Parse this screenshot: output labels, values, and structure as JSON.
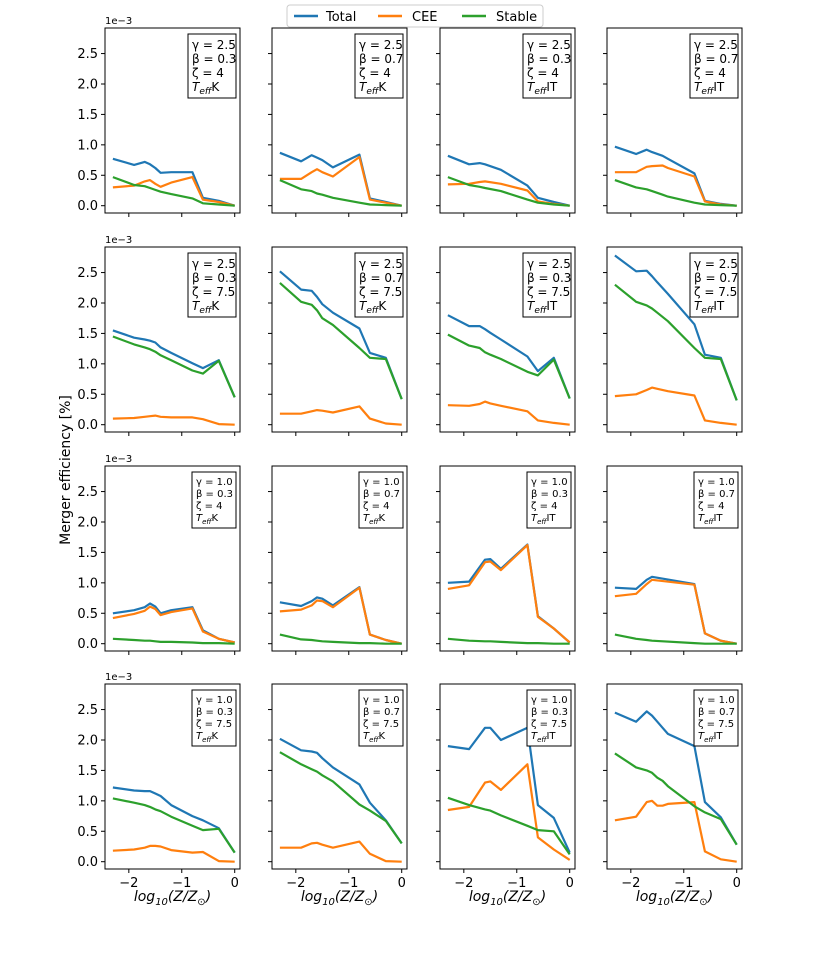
{
  "figure": {
    "ylabel": "Merger efficiency [%]",
    "xlabel": "log10(Z/Z⊙)",
    "offset_label": "1e−3",
    "legend": {
      "placement": "top-center",
      "entries": [
        {
          "name": "Total",
          "color": "#1f77b4"
        },
        {
          "name": "CEE",
          "color": "#ff7f0e"
        },
        {
          "name": "Stable",
          "color": "#2ca02c"
        }
      ]
    },
    "x_ticks": [
      -2,
      -1,
      0
    ],
    "x_tick_labels": [
      "−2",
      "−1",
      "0"
    ],
    "y_ticks": [
      0.0,
      0.5,
      1.0,
      1.5,
      2.0,
      2.5
    ],
    "y_tick_labels": [
      "0.0",
      "0.5",
      "1.0",
      "1.5",
      "2.0",
      "2.5"
    ],
    "xlim": [
      -2.45,
      0.1
    ],
    "ylim": [
      -0.12,
      2.92
    ]
  },
  "chart_data": [
    {
      "type": "line",
      "row": 0,
      "col": 0,
      "annotation": [
        "γ = 2.5",
        "β = 0.3",
        "ζ = 4",
        "TeffK"
      ],
      "x": [
        -2.3,
        -1.9,
        -1.7,
        -1.6,
        -1.5,
        -1.4,
        -1.2,
        -0.8,
        -0.6,
        -0.3,
        0
      ],
      "series": [
        {
          "name": "Total",
          "values": [
            0.77,
            0.67,
            0.72,
            0.68,
            0.62,
            0.54,
            0.55,
            0.55,
            0.13,
            0.08,
            0.0
          ]
        },
        {
          "name": "CEE",
          "values": [
            0.3,
            0.33,
            0.4,
            0.42,
            0.36,
            0.31,
            0.38,
            0.47,
            0.1,
            0.06,
            0.0
          ]
        },
        {
          "name": "Stable",
          "values": [
            0.47,
            0.34,
            0.32,
            0.29,
            0.26,
            0.23,
            0.19,
            0.12,
            0.04,
            0.02,
            0.0
          ]
        }
      ]
    },
    {
      "type": "line",
      "row": 0,
      "col": 1,
      "annotation": [
        "γ = 2.5",
        "β = 0.7",
        "ζ = 4",
        "TeffK"
      ],
      "x": [
        -2.3,
        -1.9,
        -1.7,
        -1.6,
        -1.5,
        -1.3,
        -0.8,
        -0.6,
        -0.3,
        0
      ],
      "series": [
        {
          "name": "Total",
          "values": [
            0.87,
            0.73,
            0.83,
            0.79,
            0.75,
            0.63,
            0.84,
            0.12,
            0.06,
            0.0
          ]
        },
        {
          "name": "CEE",
          "values": [
            0.44,
            0.44,
            0.55,
            0.6,
            0.55,
            0.48,
            0.8,
            0.1,
            0.05,
            0.0
          ]
        },
        {
          "name": "Stable",
          "values": [
            0.42,
            0.27,
            0.24,
            0.2,
            0.18,
            0.13,
            0.05,
            0.02,
            0.01,
            0.0
          ]
        }
      ]
    },
    {
      "type": "line",
      "row": 0,
      "col": 2,
      "annotation": [
        "γ = 2.5",
        "β = 0.3",
        "ζ = 4",
        "TeffIT"
      ],
      "x": [
        -2.3,
        -1.9,
        -1.7,
        -1.6,
        -1.3,
        -0.8,
        -0.6,
        -0.3,
        0
      ],
      "series": [
        {
          "name": "Total",
          "values": [
            0.82,
            0.68,
            0.7,
            0.68,
            0.59,
            0.33,
            0.13,
            0.06,
            0.0
          ]
        },
        {
          "name": "CEE",
          "values": [
            0.35,
            0.36,
            0.39,
            0.4,
            0.36,
            0.25,
            0.07,
            0.03,
            0.0
          ]
        },
        {
          "name": "Stable",
          "values": [
            0.47,
            0.34,
            0.31,
            0.29,
            0.24,
            0.1,
            0.05,
            0.02,
            0.0
          ]
        }
      ]
    },
    {
      "type": "line",
      "row": 0,
      "col": 3,
      "annotation": [
        "γ = 2.5",
        "β = 0.7",
        "ζ = 4",
        "TeffIT"
      ],
      "x": [
        -2.3,
        -1.9,
        -1.7,
        -1.6,
        -1.4,
        -1.3,
        -0.8,
        -0.6,
        -0.3,
        0
      ],
      "series": [
        {
          "name": "Total",
          "values": [
            0.97,
            0.85,
            0.92,
            0.88,
            0.82,
            0.77,
            0.53,
            0.08,
            0.03,
            0.0
          ]
        },
        {
          "name": "CEE",
          "values": [
            0.55,
            0.55,
            0.64,
            0.65,
            0.66,
            0.62,
            0.48,
            0.07,
            0.02,
            0.0
          ]
        },
        {
          "name": "Stable",
          "values": [
            0.42,
            0.3,
            0.27,
            0.24,
            0.18,
            0.15,
            0.05,
            0.02,
            0.01,
            0.0
          ]
        }
      ]
    },
    {
      "type": "line",
      "row": 1,
      "col": 0,
      "annotation": [
        "γ = 2.5",
        "β = 0.3",
        "ζ = 7.5",
        "TeffK"
      ],
      "x": [
        -2.3,
        -1.9,
        -1.7,
        -1.6,
        -1.5,
        -1.4,
        -1.2,
        -0.8,
        -0.6,
        -0.3,
        0
      ],
      "series": [
        {
          "name": "Total",
          "values": [
            1.55,
            1.43,
            1.4,
            1.38,
            1.35,
            1.27,
            1.18,
            1.01,
            0.93,
            1.06,
            0.45
          ]
        },
        {
          "name": "CEE",
          "values": [
            0.1,
            0.11,
            0.13,
            0.14,
            0.15,
            0.13,
            0.12,
            0.12,
            0.09,
            0.01,
            0.0
          ]
        },
        {
          "name": "Stable",
          "values": [
            1.45,
            1.32,
            1.27,
            1.24,
            1.2,
            1.14,
            1.06,
            0.89,
            0.84,
            1.05,
            0.45
          ]
        }
      ]
    },
    {
      "type": "line",
      "row": 1,
      "col": 1,
      "annotation": [
        "γ = 2.5",
        "β = 0.7",
        "ζ = 7.5",
        "TeffK"
      ],
      "x": [
        -2.3,
        -1.9,
        -1.7,
        -1.6,
        -1.5,
        -1.3,
        -0.8,
        -0.6,
        -0.3,
        0
      ],
      "series": [
        {
          "name": "Total",
          "values": [
            2.52,
            2.22,
            2.2,
            2.1,
            1.98,
            1.84,
            1.58,
            1.18,
            1.1,
            0.42
          ]
        },
        {
          "name": "CEE",
          "values": [
            0.18,
            0.18,
            0.22,
            0.24,
            0.23,
            0.2,
            0.3,
            0.1,
            0.02,
            0.0
          ]
        },
        {
          "name": "Stable",
          "values": [
            2.33,
            2.02,
            1.97,
            1.88,
            1.75,
            1.64,
            1.26,
            1.1,
            1.08,
            0.42
          ]
        }
      ]
    },
    {
      "type": "line",
      "row": 1,
      "col": 2,
      "annotation": [
        "γ = 2.5",
        "β = 0.3",
        "ζ = 7.5",
        "TeffIT"
      ],
      "x": [
        -2.3,
        -1.9,
        -1.7,
        -1.6,
        -1.5,
        -1.3,
        -0.8,
        -0.6,
        -0.3,
        0
      ],
      "series": [
        {
          "name": "Total",
          "values": [
            1.8,
            1.62,
            1.62,
            1.57,
            1.51,
            1.4,
            1.12,
            0.88,
            1.1,
            0.43
          ]
        },
        {
          "name": "CEE",
          "values": [
            0.32,
            0.31,
            0.34,
            0.38,
            0.35,
            0.31,
            0.22,
            0.07,
            0.03,
            0.0
          ]
        },
        {
          "name": "Stable",
          "values": [
            1.48,
            1.3,
            1.26,
            1.19,
            1.15,
            1.08,
            0.87,
            0.81,
            1.07,
            0.43
          ]
        }
      ]
    },
    {
      "type": "line",
      "row": 1,
      "col": 3,
      "annotation": [
        "γ = 2.5",
        "β = 0.7",
        "ζ = 7.5",
        "TeffIT"
      ],
      "x": [
        -2.3,
        -1.9,
        -1.7,
        -1.6,
        -1.5,
        -1.3,
        -0.8,
        -0.6,
        -0.3,
        0
      ],
      "series": [
        {
          "name": "Total",
          "values": [
            2.78,
            2.52,
            2.53,
            2.44,
            2.34,
            2.15,
            1.65,
            1.15,
            1.1,
            0.4
          ]
        },
        {
          "name": "CEE",
          "values": [
            0.47,
            0.5,
            0.57,
            0.61,
            0.59,
            0.55,
            0.48,
            0.07,
            0.03,
            0.0
          ]
        },
        {
          "name": "Stable",
          "values": [
            2.3,
            2.02,
            1.96,
            1.91,
            1.84,
            1.7,
            1.26,
            1.1,
            1.08,
            0.4
          ]
        }
      ]
    },
    {
      "type": "line",
      "row": 2,
      "col": 0,
      "annotation": [
        "γ = 1.0",
        "β = 0.3",
        "ζ = 4",
        "TeffK"
      ],
      "x": [
        -2.3,
        -1.9,
        -1.7,
        -1.6,
        -1.5,
        -1.4,
        -1.2,
        -0.8,
        -0.6,
        -0.3,
        0
      ],
      "series": [
        {
          "name": "Total",
          "values": [
            0.5,
            0.55,
            0.6,
            0.66,
            0.61,
            0.5,
            0.55,
            0.6,
            0.22,
            0.08,
            0.02
          ]
        },
        {
          "name": "CEE",
          "values": [
            0.42,
            0.49,
            0.54,
            0.61,
            0.57,
            0.47,
            0.52,
            0.58,
            0.2,
            0.08,
            0.02
          ]
        },
        {
          "name": "Stable",
          "values": [
            0.08,
            0.06,
            0.05,
            0.05,
            0.04,
            0.03,
            0.03,
            0.02,
            0.01,
            0.01,
            0.0
          ]
        }
      ]
    },
    {
      "type": "line",
      "row": 2,
      "col": 1,
      "annotation": [
        "γ = 1.0",
        "β = 0.7",
        "ζ = 4",
        "TeffK"
      ],
      "x": [
        -2.3,
        -1.9,
        -1.7,
        -1.6,
        -1.5,
        -1.3,
        -0.8,
        -0.6,
        -0.3,
        0
      ],
      "series": [
        {
          "name": "Total",
          "values": [
            0.68,
            0.62,
            0.7,
            0.76,
            0.74,
            0.63,
            0.93,
            0.15,
            0.06,
            0.0
          ]
        },
        {
          "name": "CEE",
          "values": [
            0.53,
            0.56,
            0.63,
            0.71,
            0.7,
            0.6,
            0.92,
            0.15,
            0.06,
            0.0
          ]
        },
        {
          "name": "Stable",
          "values": [
            0.15,
            0.07,
            0.06,
            0.05,
            0.04,
            0.03,
            0.01,
            0.01,
            0.0,
            0.0
          ]
        }
      ]
    },
    {
      "type": "line",
      "row": 2,
      "col": 2,
      "annotation": [
        "γ = 1.0",
        "β = 0.3",
        "ζ = 4",
        "TeffIT"
      ],
      "x": [
        -2.3,
        -1.9,
        -1.6,
        -1.5,
        -1.3,
        -0.8,
        -0.6,
        -0.3,
        0
      ],
      "series": [
        {
          "name": "Total",
          "values": [
            1.0,
            1.02,
            1.38,
            1.39,
            1.23,
            1.63,
            0.45,
            0.25,
            0.02
          ]
        },
        {
          "name": "CEE",
          "values": [
            0.9,
            0.96,
            1.34,
            1.35,
            1.21,
            1.62,
            0.44,
            0.25,
            0.02
          ]
        },
        {
          "name": "Stable",
          "values": [
            0.08,
            0.05,
            0.04,
            0.04,
            0.03,
            0.01,
            0.01,
            0.0,
            0.0
          ]
        }
      ]
    },
    {
      "type": "line",
      "row": 2,
      "col": 3,
      "annotation": [
        "γ = 1.0",
        "β = 0.7",
        "ζ = 4",
        "TeffIT"
      ],
      "x": [
        -2.3,
        -1.9,
        -1.7,
        -1.6,
        -0.8,
        -0.6,
        -0.3,
        0
      ],
      "series": [
        {
          "name": "Total",
          "values": [
            0.92,
            0.9,
            1.05,
            1.1,
            0.98,
            0.17,
            0.05,
            0.0
          ]
        },
        {
          "name": "CEE",
          "values": [
            0.78,
            0.82,
            0.98,
            1.05,
            0.97,
            0.17,
            0.05,
            0.0
          ]
        },
        {
          "name": "Stable",
          "values": [
            0.15,
            0.08,
            0.06,
            0.05,
            0.01,
            0.0,
            0.0,
            0.0
          ]
        }
      ]
    },
    {
      "type": "line",
      "row": 3,
      "col": 0,
      "annotation": [
        "γ = 1.0",
        "β = 0.3",
        "ζ = 7.5",
        "TeffK"
      ],
      "x": [
        -2.3,
        -1.9,
        -1.7,
        -1.6,
        -1.5,
        -1.4,
        -1.2,
        -0.8,
        -0.6,
        -0.3,
        0
      ],
      "series": [
        {
          "name": "Total",
          "values": [
            1.22,
            1.17,
            1.16,
            1.16,
            1.12,
            1.08,
            0.93,
            0.75,
            0.68,
            0.55,
            0.15
          ]
        },
        {
          "name": "CEE",
          "values": [
            0.18,
            0.2,
            0.23,
            0.26,
            0.26,
            0.25,
            0.19,
            0.15,
            0.16,
            0.01,
            0.0
          ]
        },
        {
          "name": "Stable",
          "values": [
            1.04,
            0.97,
            0.93,
            0.9,
            0.86,
            0.83,
            0.74,
            0.59,
            0.52,
            0.54,
            0.15
          ]
        }
      ]
    },
    {
      "type": "line",
      "row": 3,
      "col": 1,
      "annotation": [
        "γ = 1.0",
        "β = 0.7",
        "ζ = 7.5",
        "TeffK"
      ],
      "x": [
        -2.3,
        -1.9,
        -1.7,
        -1.6,
        -1.5,
        -1.3,
        -0.8,
        -0.6,
        -0.3,
        0
      ],
      "series": [
        {
          "name": "Total",
          "values": [
            2.02,
            1.83,
            1.81,
            1.79,
            1.7,
            1.55,
            1.27,
            0.97,
            0.68,
            0.3
          ]
        },
        {
          "name": "CEE",
          "values": [
            0.23,
            0.23,
            0.3,
            0.31,
            0.28,
            0.23,
            0.33,
            0.13,
            0.01,
            0.0
          ]
        },
        {
          "name": "Stable",
          "values": [
            1.8,
            1.6,
            1.52,
            1.48,
            1.42,
            1.32,
            0.94,
            0.84,
            0.67,
            0.3
          ]
        }
      ]
    },
    {
      "type": "line",
      "row": 3,
      "col": 2,
      "annotation": [
        "γ = 1.0",
        "β = 0.3",
        "ζ = 7.5",
        "TeffIT"
      ],
      "x": [
        -2.3,
        -1.9,
        -1.6,
        -1.5,
        -1.3,
        -0.8,
        -0.6,
        -0.3,
        0
      ],
      "series": [
        {
          "name": "Total",
          "values": [
            1.9,
            1.85,
            2.2,
            2.2,
            2.0,
            2.2,
            0.93,
            0.72,
            0.15
          ]
        },
        {
          "name": "CEE",
          "values": [
            0.85,
            0.9,
            1.3,
            1.32,
            1.18,
            1.6,
            0.4,
            0.2,
            0.03
          ]
        },
        {
          "name": "Stable",
          "values": [
            1.05,
            0.93,
            0.86,
            0.84,
            0.76,
            0.59,
            0.52,
            0.5,
            0.12
          ]
        }
      ]
    },
    {
      "type": "line",
      "row": 3,
      "col": 3,
      "annotation": [
        "γ = 1.0",
        "β = 0.7",
        "ζ = 7.5",
        "TeffIT"
      ],
      "x": [
        -2.3,
        -1.9,
        -1.7,
        -1.6,
        -1.5,
        -1.4,
        -1.3,
        -0.8,
        -0.6,
        -0.3,
        0
      ],
      "series": [
        {
          "name": "Total",
          "values": [
            2.45,
            2.3,
            2.47,
            2.4,
            2.3,
            2.2,
            2.1,
            1.9,
            0.98,
            0.73,
            0.28
          ]
        },
        {
          "name": "CEE",
          "values": [
            0.68,
            0.74,
            0.98,
            1.0,
            0.92,
            0.92,
            0.95,
            0.98,
            0.17,
            0.04,
            0.0
          ]
        },
        {
          "name": "Stable",
          "values": [
            1.78,
            1.55,
            1.5,
            1.46,
            1.38,
            1.33,
            1.24,
            0.91,
            0.81,
            0.7,
            0.28
          ]
        }
      ]
    }
  ]
}
